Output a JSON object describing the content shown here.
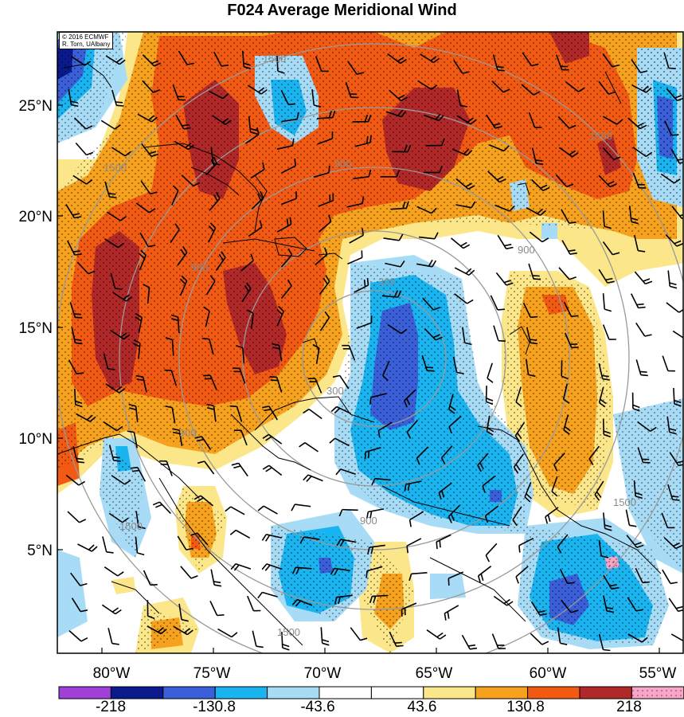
{
  "title": "F024 Average Meridional Wind",
  "credit": {
    "line1": "© 2016 ECMWF",
    "line2": "R. Torn, UAlbany"
  },
  "lat_labels": [
    "25°N",
    "20°N",
    "15°N",
    "10°N",
    "5°N"
  ],
  "lon_labels": [
    "80°W",
    "75°W",
    "70°W",
    "65°W",
    "60°W",
    "55°W"
  ],
  "contour_labels": [
    "1500",
    "1500",
    "1500",
    "900",
    "900",
    "900",
    "900",
    "300",
    "300",
    "900",
    "1500",
    "1500",
    "1500"
  ],
  "colorbar": {
    "labels": [
      "-218",
      "-130.8",
      "-43.6",
      "43.6",
      "130.8",
      "218"
    ],
    "colors": [
      "#a040d8",
      "#0a1a8c",
      "#3a5fd8",
      "#1ab4f0",
      "#a8dcf6",
      "#ffffff",
      "#ffffff",
      "#fbe68a",
      "#f6a21e",
      "#f25a14",
      "#b02828",
      "#f8a6c8"
    ]
  },
  "palette": {
    "dark_red": "#b02828",
    "red": "#f25a14",
    "orange": "#f6a21e",
    "yellow": "#fbe68a",
    "light_blue": "#a8dcf6",
    "blue": "#1ab4f0",
    "mid_blue": "#3a5fd8",
    "navy": "#0a1a8c"
  }
}
